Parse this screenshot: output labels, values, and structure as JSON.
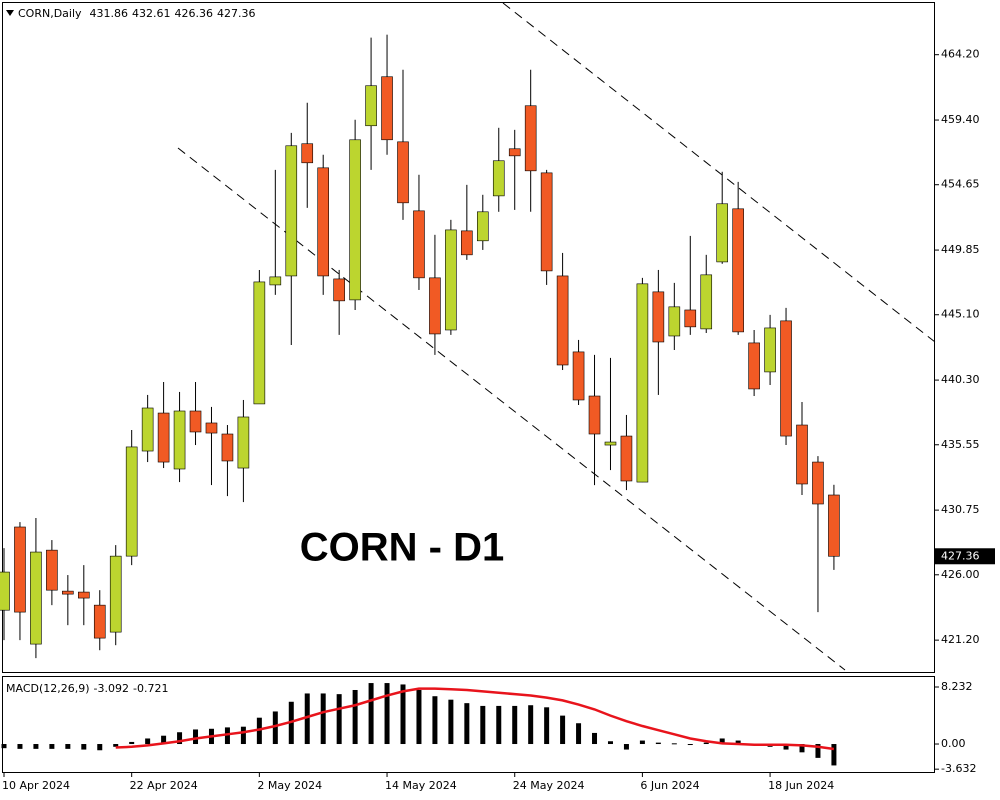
{
  "chart_data": [
    {
      "type": "candlestick",
      "title": "CORN,Daily",
      "annotation": "CORN - D1",
      "categories": [
        "10 Apr 2024",
        null,
        null,
        null,
        null,
        null,
        null,
        null,
        "22 Apr 2024",
        null,
        null,
        null,
        null,
        null,
        null,
        null,
        "2 May 2024",
        null,
        null,
        null,
        null,
        null,
        null,
        null,
        "14 May 2024",
        null,
        null,
        null,
        null,
        null,
        null,
        null,
        "24 May 2024",
        null,
        null,
        null,
        null,
        null,
        null,
        null,
        "6 Jun 2024",
        null,
        null,
        null,
        null,
        null,
        null,
        null,
        "18 Jun 2024",
        null,
        null,
        null,
        null
      ],
      "open": [
        423.4,
        429.51,
        420.91,
        427.81,
        424.8,
        424.73,
        423.77,
        421.79,
        427.37,
        435.09,
        437.88,
        433.77,
        438.03,
        437.15,
        436.34,
        433.84,
        438.55,
        447.29,
        447.95,
        457.66,
        455.89,
        447.73,
        446.19,
        458.98,
        462.58,
        457.8,
        452.73,
        447.81,
        443.98,
        451.26,
        450.53,
        453.83,
        457.29,
        460.45,
        455.52,
        447.95,
        442.37,
        439.13,
        435.53,
        436.19,
        432.81,
        446.78,
        443.54,
        445.45,
        444.06,
        448.98,
        452.88,
        443.03,
        440.9,
        444.65,
        437.0,
        434.28,
        431.86
      ],
      "high": [
        427.96,
        429.87,
        430.17,
        428.55,
        425.98,
        426.71,
        424.87,
        428.18,
        436.63,
        439.21,
        440.16,
        439.43,
        440.16,
        438.33,
        437.0,
        438.84,
        448.39,
        455.74,
        458.46,
        460.67,
        456.85,
        448.39,
        459.42,
        465.45,
        465.67,
        463.09,
        455.38,
        450.97,
        452.07,
        454.64,
        453.91,
        458.83,
        458.68,
        463.09,
        455.74,
        449.64,
        443.25,
        442.15,
        441.93,
        437.74,
        447.81,
        448.39,
        447.44,
        450.89,
        449.5,
        455.6,
        454.86,
        443.98,
        445.09,
        445.6,
        438.69,
        434.72,
        432.61
      ],
      "low": [
        421.2,
        421.2,
        419.88,
        423.77,
        422.3,
        422.3,
        420.46,
        420.83,
        426.71,
        434.28,
        433.84,
        432.81,
        435.53,
        432.59,
        431.78,
        431.34,
        438.55,
        446.56,
        442.88,
        452.95,
        446.56,
        443.62,
        445.45,
        455.74,
        456.85,
        452.07,
        446.92,
        442.15,
        443.62,
        449.13,
        449.86,
        452.66,
        452.8,
        452.66,
        447.29,
        441.04,
        438.47,
        432.59,
        433.69,
        432.22,
        432.81,
        439.21,
        442.51,
        443.62,
        443.76,
        448.84,
        443.62,
        439.13,
        439.94,
        435.53,
        431.86,
        423.26,
        426.36
      ],
      "close": [
        426.2,
        423.26,
        427.67,
        424.87,
        424.58,
        424.29,
        421.35,
        427.37,
        435.39,
        438.25,
        434.28,
        438.03,
        436.49,
        436.41,
        434.36,
        437.59,
        447.51,
        447.88,
        457.51,
        456.26,
        447.95,
        446.12,
        457.95,
        461.92,
        457.95,
        453.32,
        447.81,
        443.69,
        451.33,
        449.5,
        452.66,
        456.41,
        456.77,
        455.67,
        448.32,
        441.41,
        438.84,
        436.34,
        435.75,
        432.89,
        447.37,
        443.1,
        445.68,
        444.21,
        448.03,
        453.25,
        443.84,
        439.65,
        444.13,
        436.19,
        432.67,
        431.2,
        427.36
      ],
      "up_color": "#bcd52f",
      "down_color": "#f15a24",
      "ylim": [
        418.86,
        468.07
      ],
      "yticks": [
        {
          "value": 464.2,
          "label": "464.20"
        },
        {
          "value": 459.4,
          "label": "459.40"
        },
        454.65,
        449.85,
        {
          "value": 445.1,
          "label": "445.10"
        },
        {
          "value": 440.3,
          "label": "440.30"
        },
        435.55,
        430.75,
        {
          "value": 426,
          "label": "426.00"
        },
        {
          "value": 421.2,
          "label": "421.20"
        }
      ]
    },
    {
      "type": "macd",
      "title": "MACD(12,26,9)",
      "histogram": [
        -0.6,
        -0.7,
        -0.7,
        -0.7,
        -0.7,
        -0.8,
        -0.9,
        -0.4,
        0.3,
        0.8,
        1.2,
        1.7,
        2.1,
        2.2,
        2.4,
        2.5,
        3.8,
        4.7,
        6.1,
        7.3,
        7.3,
        7.2,
        7.8,
        8.8,
        8.8,
        8.6,
        7.8,
        6.9,
        6.4,
        5.9,
        5.5,
        5.5,
        5.5,
        5.6,
        5.3,
        4.1,
        3.0,
        1.6,
        0.4,
        -0.8,
        0.5,
        0.2,
        0.1,
        -0.1,
        0.2,
        0.8,
        0.5,
        -0.2,
        -0.4,
        -0.8,
        -1.2,
        -2.0,
        -3.092
      ],
      "signal": [
        null,
        null,
        null,
        null,
        null,
        null,
        null,
        -0.5,
        -0.4,
        -0.2,
        0.1,
        0.4,
        0.8,
        1.1,
        1.4,
        1.7,
        2.1,
        2.6,
        3.2,
        3.9,
        4.6,
        5.1,
        5.6,
        6.3,
        7.0,
        7.6,
        8.0,
        8.0,
        7.9,
        7.8,
        7.6,
        7.4,
        7.2,
        7.0,
        6.7,
        6.3,
        5.7,
        5.0,
        4.1,
        3.3,
        2.6,
        2.0,
        1.4,
        0.8,
        0.4,
        0.1,
        0.0,
        -0.1,
        -0.1,
        -0.1,
        -0.2,
        -0.4,
        -0.721
      ],
      "histogram_color": "#000000",
      "signal_color": "#e8141c",
      "ylim": [
        -4.04,
        9.82
      ],
      "yticks": [
        8.232,
        {
          "value": 0,
          "label": "0.00"
        },
        -3.632
      ]
    }
  ]
}
